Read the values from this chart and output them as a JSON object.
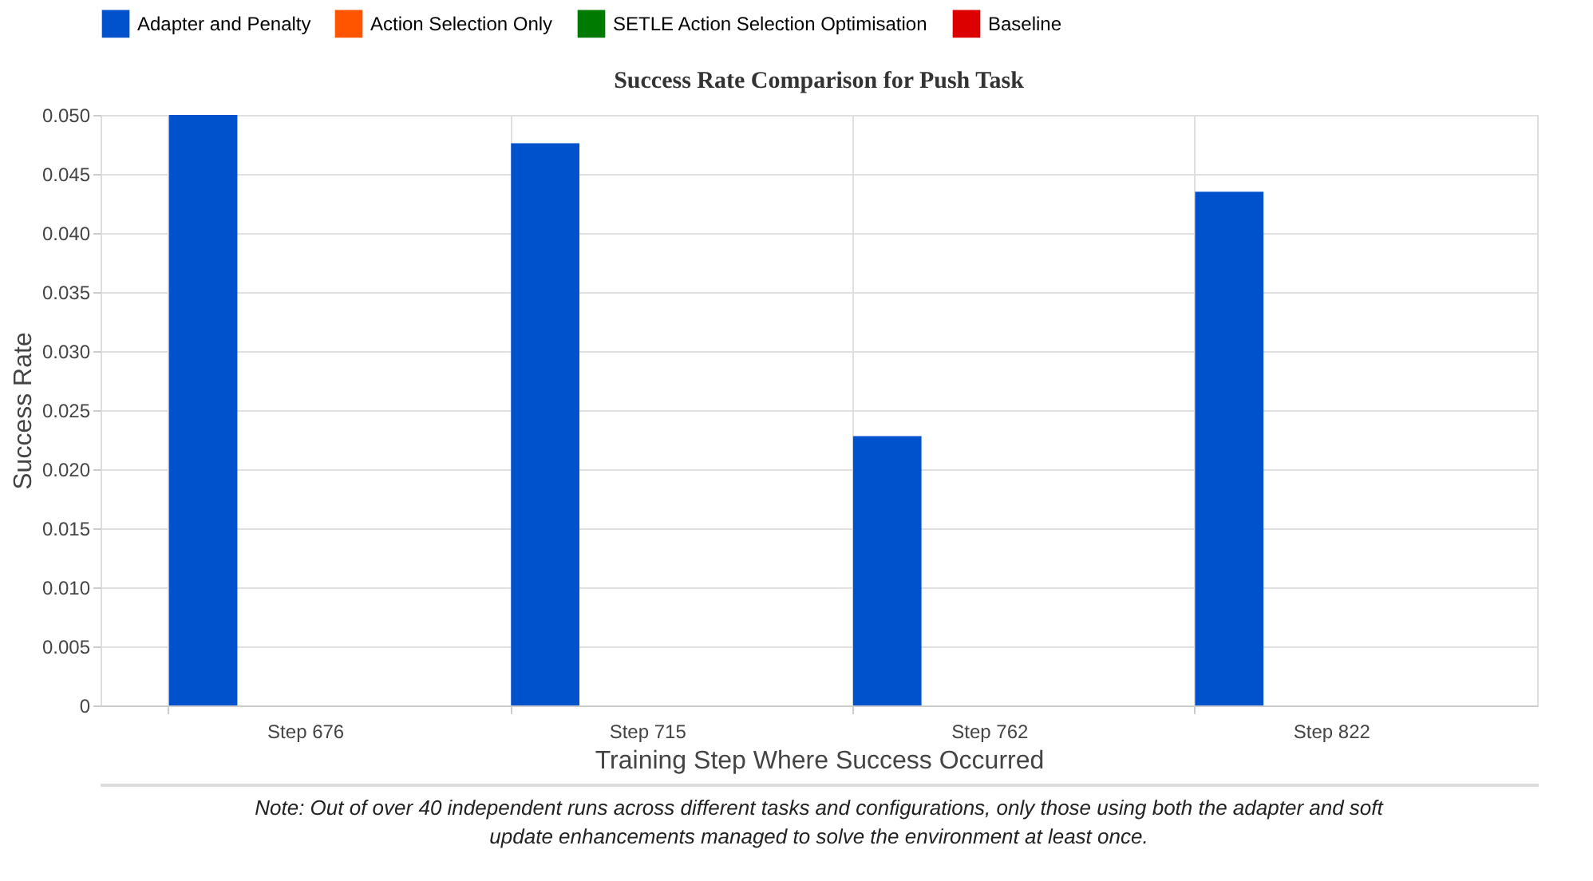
{
  "chart_data": {
    "type": "bar",
    "title": "Success Rate Comparison for Push Task",
    "xlabel": "Training Step Where Success Occurred",
    "ylabel": "Success Rate",
    "categories": [
      "Step 676",
      "Step 715",
      "Step 762",
      "Step 822"
    ],
    "series": [
      {
        "name": "Adapter and Penalty",
        "color": "#0052cc",
        "values": [
          0.05,
          0.0476,
          0.0228,
          0.0435
        ]
      },
      {
        "name": "Action Selection Only",
        "color": "#ff5500",
        "values": [
          0,
          0,
          0,
          0
        ]
      },
      {
        "name": "SETLE Action Selection Optimisation",
        "color": "#007a00",
        "values": [
          0,
          0,
          0,
          0
        ]
      },
      {
        "name": "Baseline",
        "color": "#dd0000",
        "values": [
          0,
          0,
          0,
          0
        ]
      }
    ],
    "ylim": [
      0,
      0.05
    ],
    "yticks": [
      {
        "value": 0,
        "label": "0"
      },
      {
        "value": 0.005,
        "label": "0.005"
      },
      {
        "value": 0.01,
        "label": "0.010"
      },
      {
        "value": 0.015,
        "label": "0.015"
      },
      {
        "value": 0.02,
        "label": "0.020"
      },
      {
        "value": 0.025,
        "label": "0.025"
      },
      {
        "value": 0.03,
        "label": "0.030"
      },
      {
        "value": 0.035,
        "label": "0.035"
      },
      {
        "value": 0.04,
        "label": "0.040"
      },
      {
        "value": 0.045,
        "label": "0.045"
      },
      {
        "value": 0.05,
        "label": "0.050"
      }
    ],
    "grid": true,
    "legend": "top",
    "annotations": [
      "Note: Out of over 40 independent runs across different tasks and configurations, only those using both the adapter and soft update enhancements managed to solve the environment at least once."
    ]
  }
}
